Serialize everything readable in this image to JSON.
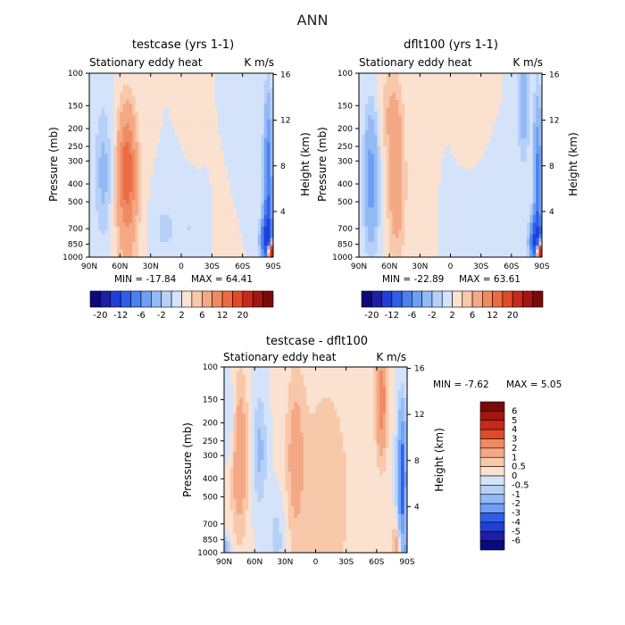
{
  "figure": {
    "main_title": "ANN"
  },
  "colors": {
    "diverging_palette": [
      "#0a0a7a",
      "#1e1ea6",
      "#1f3fd6",
      "#2f5fe8",
      "#4a80f0",
      "#6e9ff4",
      "#94baf6",
      "#b6d0f8",
      "#d4e3fa",
      "#fbe1cf",
      "#f8c8ab",
      "#f4a885",
      "#f08a62",
      "#ea6c42",
      "#de4a2a",
      "#c62a1b",
      "#a21510",
      "#7a0a0a"
    ],
    "neutral_positive": "#fbe1cf",
    "neutral_negative": "#d4e3fa"
  },
  "chart_data": [
    {
      "type": "heatmap",
      "title": "testcase (yrs 1-1)",
      "subtitle_left": "Stationary eddy heat",
      "subtitle_right": "K m/s",
      "xlabel": "",
      "ylabel": "Pressure (mb)",
      "ylabel_right": "Height (km)",
      "x_tick_labels": [
        "90N",
        "60N",
        "30N",
        "0",
        "30S",
        "60S",
        "90S"
      ],
      "x_ticks": [
        90,
        60,
        30,
        0,
        -30,
        -60,
        -90
      ],
      "y_tick_labels": [
        "100",
        "150",
        "200",
        "250",
        "300",
        "400",
        "500",
        "700",
        "850",
        "1000"
      ],
      "y_ticks": [
        100,
        150,
        200,
        250,
        300,
        400,
        500,
        700,
        850,
        1000
      ],
      "y_right_tick_labels": [
        "16",
        "12",
        "8",
        "4"
      ],
      "y_right_ticks": [
        16,
        12,
        8,
        4
      ],
      "xlim": [
        90,
        -90
      ],
      "ylim": [
        1000,
        100
      ],
      "y_scale": "log",
      "min_label": "MIN = -17.84",
      "max_label": "MAX = 64.41",
      "min": -17.84,
      "max": 64.41,
      "contour_levels": [
        -20,
        -16,
        -12,
        -8,
        -6,
        -4,
        -2,
        -1,
        0,
        1,
        2,
        4,
        6,
        8,
        12,
        16,
        20
      ],
      "colorbar_labels": [
        "-20",
        "-12",
        "-6",
        "-2",
        "2",
        "6",
        "12",
        "20"
      ],
      "features": [
        {
          "lat": 53,
          "p": 330,
          "value": 6,
          "sigma_lat": 6,
          "sigma_z": 5
        },
        {
          "lat": 53,
          "p": 600,
          "value": 2,
          "sigma_lat": 9,
          "sigma_z": 9
        },
        {
          "lat": 76,
          "p": 350,
          "value": -2.5,
          "sigma_lat": 6,
          "sigma_z": 6
        },
        {
          "lat": -85,
          "p": 400,
          "value": -8,
          "sigma_lat": 3,
          "sigma_z": 7
        },
        {
          "lat": -84,
          "p": 800,
          "value": -12,
          "sigma_lat": 4,
          "sigma_z": 2
        },
        {
          "lat": -88,
          "p": 950,
          "value": 22,
          "sigma_lat": 2.5,
          "sigma_z": 1
        },
        {
          "lat": -15,
          "p": 120,
          "value": 1,
          "sigma_lat": 7,
          "sigma_z": 5
        },
        {
          "lat": -48,
          "p": 200,
          "value": -1,
          "sigma_lat": 6,
          "sigma_z": 5
        },
        {
          "lat": -8,
          "p": 700,
          "value": -1,
          "sigma_lat": 14,
          "sigma_z": 4
        },
        {
          "lat": 18,
          "p": 700,
          "value": -1,
          "sigma_lat": 8,
          "sigma_z": 3
        },
        {
          "lat": -40,
          "p": 600,
          "value": 1,
          "sigma_lat": 6,
          "sigma_z": 6
        }
      ]
    },
    {
      "type": "heatmap",
      "title": "dflt100 (yrs 1-1)",
      "subtitle_left": "Stationary eddy heat",
      "subtitle_right": "K m/s",
      "xlabel": "",
      "ylabel": "Pressure (mb)",
      "ylabel_right": "Height (km)",
      "x_tick_labels": [
        "90N",
        "60N",
        "30N",
        "0",
        "30S",
        "60S",
        "90S"
      ],
      "x_ticks": [
        90,
        60,
        30,
        0,
        -30,
        -60,
        -90
      ],
      "y_tick_labels": [
        "100",
        "150",
        "200",
        "250",
        "300",
        "400",
        "500",
        "700",
        "850",
        "1000"
      ],
      "y_ticks": [
        100,
        150,
        200,
        250,
        300,
        400,
        500,
        700,
        850,
        1000
      ],
      "y_right_tick_labels": [
        "16",
        "12",
        "8",
        "4"
      ],
      "y_right_ticks": [
        16,
        12,
        8,
        4
      ],
      "xlim": [
        90,
        -90
      ],
      "ylim": [
        1000,
        100
      ],
      "y_scale": "log",
      "min_label": "MIN = -22.89",
      "max_label": "MAX = 63.61",
      "min": -22.89,
      "max": 63.61,
      "contour_levels": [
        -20,
        -16,
        -12,
        -8,
        -6,
        -4,
        -2,
        -1,
        0,
        1,
        2,
        4,
        6,
        8,
        12,
        16,
        20
      ],
      "colorbar_labels": [
        "-20",
        "-12",
        "-6",
        "-2",
        "2",
        "6",
        "12",
        "20"
      ],
      "features": [
        {
          "lat": 53,
          "p": 380,
          "value": 3.5,
          "sigma_lat": 6,
          "sigma_z": 7
        },
        {
          "lat": 60,
          "p": 160,
          "value": 1.5,
          "sigma_lat": 7,
          "sigma_z": 4
        },
        {
          "lat": 78,
          "p": 380,
          "value": -5,
          "sigma_lat": 5,
          "sigma_z": 6
        },
        {
          "lat": -72,
          "p": 150,
          "value": -3,
          "sigma_lat": 4,
          "sigma_z": 5
        },
        {
          "lat": -86,
          "p": 400,
          "value": -7,
          "sigma_lat": 3,
          "sigma_z": 7
        },
        {
          "lat": -84,
          "p": 820,
          "value": -12,
          "sigma_lat": 4,
          "sigma_z": 2
        },
        {
          "lat": -88,
          "p": 950,
          "value": 22,
          "sigma_lat": 2.5,
          "sigma_z": 1
        },
        {
          "lat": -15,
          "p": 130,
          "value": 1,
          "sigma_lat": 7,
          "sigma_z": 5
        },
        {
          "lat": -8,
          "p": 700,
          "value": -1,
          "sigma_lat": 14,
          "sigma_z": 4
        },
        {
          "lat": 25,
          "p": 600,
          "value": 1,
          "sigma_lat": 8,
          "sigma_z": 6
        }
      ]
    },
    {
      "type": "heatmap",
      "title": "testcase - dflt100",
      "subtitle_left": "Stationary eddy heat",
      "subtitle_right": "K m/s",
      "xlabel": "",
      "ylabel": "Pressure (mb)",
      "ylabel_right": "Height (km)",
      "x_tick_labels": [
        "90N",
        "60N",
        "30N",
        "0",
        "30S",
        "60S",
        "90S"
      ],
      "x_ticks": [
        90,
        60,
        30,
        0,
        -30,
        -60,
        -90
      ],
      "y_tick_labels": [
        "100",
        "150",
        "200",
        "250",
        "300",
        "400",
        "500",
        "700",
        "850",
        "1000"
      ],
      "y_ticks": [
        100,
        150,
        200,
        250,
        300,
        400,
        500,
        700,
        850,
        1000
      ],
      "y_right_tick_labels": [
        "16",
        "12",
        "8",
        "4"
      ],
      "y_right_ticks": [
        16,
        12,
        8,
        4
      ],
      "xlim": [
        90,
        -90
      ],
      "ylim": [
        1000,
        100
      ],
      "y_scale": "log",
      "min_label": "MIN = -7.62",
      "max_label": "MAX = 5.05",
      "min": -7.62,
      "max": 5.05,
      "contour_levels": [
        -6,
        -5,
        -4,
        -3,
        -2,
        -1,
        -0.5,
        0,
        0.5,
        1,
        2,
        3,
        4,
        5,
        6
      ],
      "colorbar_labels": [
        "6",
        "5",
        "4",
        "3",
        "2",
        "1",
        "0.5",
        "0",
        "-0.5",
        "-1",
        "-2",
        "-3",
        "-4",
        "-5",
        "-6"
      ],
      "features": [
        {
          "lat": 75,
          "p": 300,
          "value": 1.8,
          "sigma_lat": 6,
          "sigma_z": 7
        },
        {
          "lat": 55,
          "p": 280,
          "value": -1.2,
          "sigma_lat": 5,
          "sigma_z": 5
        },
        {
          "lat": 20,
          "p": 300,
          "value": 1.2,
          "sigma_lat": 6,
          "sigma_z": 7
        },
        {
          "lat": 83,
          "p": 200,
          "value": -0.8,
          "sigma_lat": 4,
          "sigma_z": 4
        },
        {
          "lat": -65,
          "p": 150,
          "value": 2.5,
          "sigma_lat": 4,
          "sigma_z": 5
        },
        {
          "lat": -85,
          "p": 400,
          "value": -4,
          "sigma_lat": 3,
          "sigma_z": 6
        },
        {
          "lat": -80,
          "p": 900,
          "value": 1.5,
          "sigma_lat": 3,
          "sigma_z": 2
        },
        {
          "lat": -88,
          "p": 980,
          "value": -2,
          "sigma_lat": 2,
          "sigma_z": 1
        },
        {
          "lat": -10,
          "p": 500,
          "value": 0.7,
          "sigma_lat": 25,
          "sigma_z": 15
        },
        {
          "lat": 38,
          "p": 850,
          "value": -0.8,
          "sigma_lat": 6,
          "sigma_z": 4
        },
        {
          "lat": 88,
          "p": 960,
          "value": -1.5,
          "sigma_lat": 3,
          "sigma_z": 1
        }
      ]
    }
  ]
}
